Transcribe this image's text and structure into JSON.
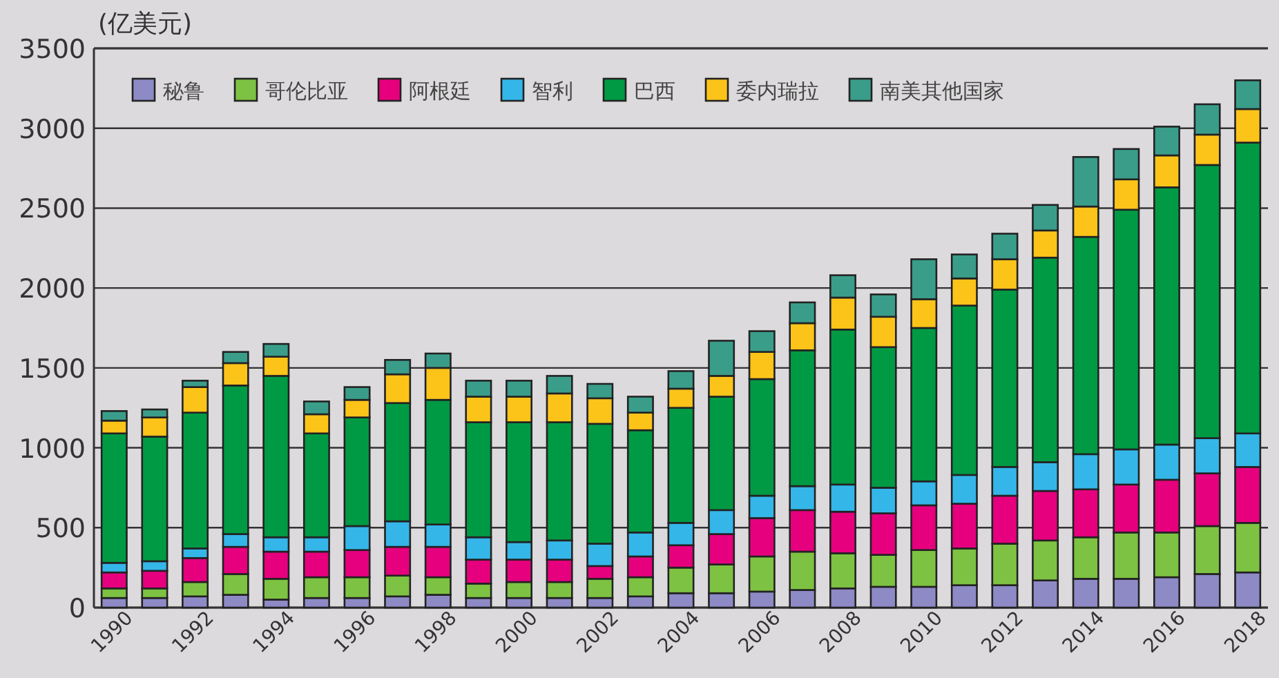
{
  "chart_data": {
    "type": "bar",
    "stacked": true,
    "ylabel": "(亿美元)",
    "categories": [
      "1990",
      null,
      "1992",
      null,
      "1994",
      null,
      "1996",
      null,
      "1998",
      null,
      "2000",
      null,
      "2002",
      null,
      "2004",
      null,
      "2006",
      null,
      "2008",
      null,
      "2010",
      null,
      "2012",
      null,
      "2014",
      null,
      "2016",
      null,
      "2018"
    ],
    "ylim": [
      0,
      3500
    ],
    "yticks": [
      0,
      500,
      1000,
      1500,
      2000,
      2500,
      3000,
      3500
    ],
    "grid": "y",
    "legend": "top",
    "series": [
      {
        "name": "秘鲁",
        "color": "#8e8ac6",
        "values": [
          60,
          60,
          70,
          80,
          50,
          60,
          60,
          70,
          80,
          60,
          60,
          60,
          60,
          70,
          90,
          90,
          100,
          110,
          120,
          130,
          130,
          140,
          140,
          170,
          180,
          180,
          190,
          210,
          220
        ]
      },
      {
        "name": "哥伦比亚",
        "color": "#7dc242",
        "values": [
          60,
          60,
          90,
          130,
          130,
          130,
          130,
          130,
          110,
          90,
          100,
          100,
          120,
          120,
          160,
          180,
          220,
          240,
          220,
          200,
          230,
          230,
          260,
          250,
          260,
          290,
          280,
          300,
          310
        ]
      },
      {
        "name": "阿根廷",
        "color": "#e6007e",
        "values": [
          100,
          110,
          150,
          170,
          170,
          160,
          170,
          180,
          190,
          150,
          140,
          140,
          80,
          130,
          140,
          190,
          240,
          260,
          260,
          260,
          280,
          280,
          300,
          310,
          300,
          300,
          330,
          330,
          350
        ]
      },
      {
        "name": "智利",
        "color": "#35b6e9",
        "values": [
          60,
          60,
          60,
          80,
          90,
          90,
          150,
          160,
          140,
          140,
          110,
          120,
          140,
          150,
          140,
          150,
          140,
          150,
          170,
          160,
          150,
          180,
          180,
          180,
          220,
          220,
          220,
          220,
          210
        ]
      },
      {
        "name": "巴西",
        "color": "#009a44",
        "values": [
          810,
          780,
          850,
          930,
          1010,
          650,
          680,
          740,
          780,
          720,
          750,
          740,
          750,
          640,
          720,
          710,
          730,
          850,
          970,
          880,
          960,
          1060,
          1110,
          1280,
          1360,
          1500,
          1610,
          1710,
          1820
        ]
      },
      {
        "name": "委内瑞拉",
        "color": "#fcc419",
        "values": [
          80,
          120,
          160,
          140,
          120,
          120,
          110,
          180,
          200,
          160,
          160,
          180,
          160,
          110,
          120,
          130,
          170,
          170,
          200,
          190,
          180,
          170,
          190,
          170,
          190,
          190,
          200,
          190,
          210
        ]
      },
      {
        "name": "南美其他国家",
        "color": "#3a9d8a",
        "values": [
          60,
          50,
          40,
          70,
          80,
          80,
          80,
          90,
          90,
          100,
          100,
          110,
          90,
          100,
          110,
          220,
          130,
          130,
          140,
          140,
          250,
          150,
          160,
          160,
          310,
          190,
          180,
          190,
          180
        ]
      }
    ]
  }
}
